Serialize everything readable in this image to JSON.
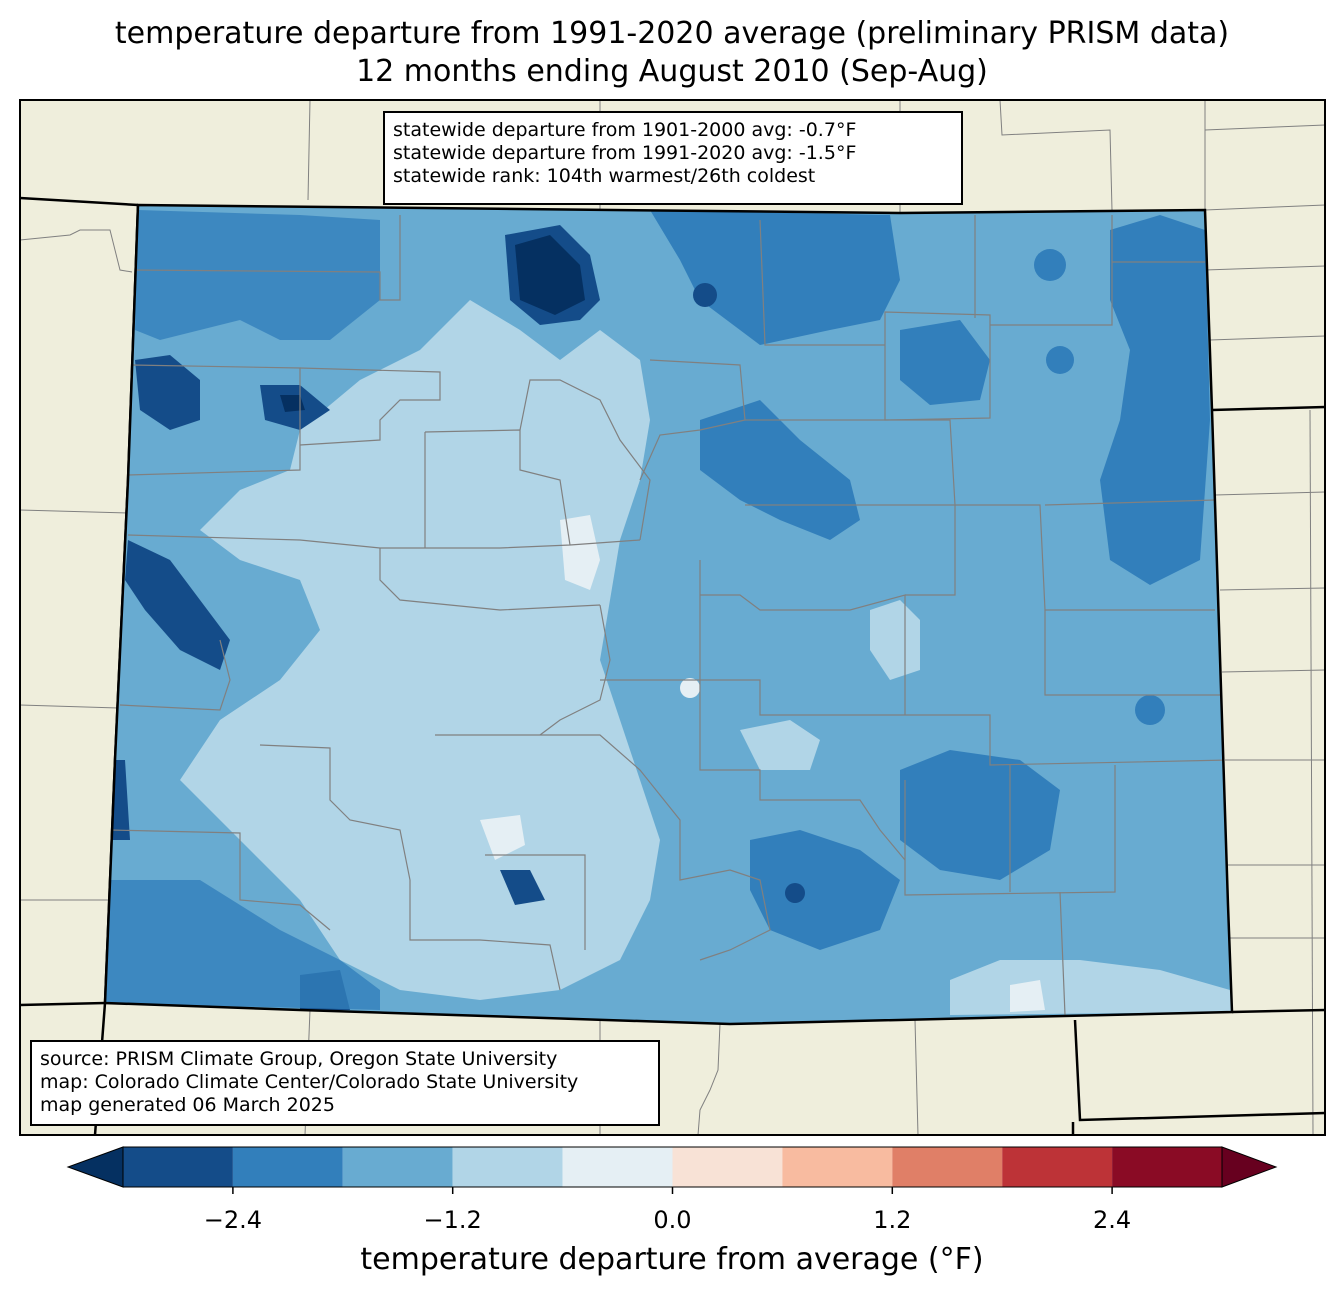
{
  "title": {
    "line1": "temperature departure from 1991-2020 average (preliminary PRISM data)",
    "line2": "12 months ending August 2010 (Sep-Aug)"
  },
  "stats": {
    "line1": "statewide departure from 1901-2000 avg: -0.7°F",
    "line2": "statewide departure from 1991-2020 avg: -1.5°F",
    "line3": "statewide rank: 104th warmest/26th coldest"
  },
  "source": {
    "line1": "source: PRISM Climate Group, Oregon State University",
    "line2": "map: Colorado Climate Center/Colorado State University",
    "line3": "map generated 06 March 2025"
  },
  "colorbar": {
    "label": "temperature departure from average (°F)",
    "ticks": [
      "−2.4",
      "−1.2",
      "0.0",
      "1.2",
      "2.4"
    ],
    "tick_values": [
      -2.4,
      -1.2,
      0.0,
      1.2,
      2.4
    ],
    "range": [
      -3.0,
      3.0
    ],
    "levels": [
      -3.0,
      -2.4,
      -1.8,
      -1.2,
      -0.6,
      0.0,
      0.6,
      1.2,
      1.8,
      2.4,
      3.0
    ],
    "under_color": "#053061",
    "over_color": "#67001f",
    "colors": [
      "#144c89",
      "#327fbb",
      "#68abd1",
      "#b1d5e7",
      "#e5eff4",
      "#f8e2d6",
      "#f8bba0",
      "#e07f67",
      "#bd3337",
      "#8a0b25"
    ]
  },
  "map_colors": {
    "land": "#efeedc",
    "state_border": "#000000",
    "county_border": "#808080"
  }
}
